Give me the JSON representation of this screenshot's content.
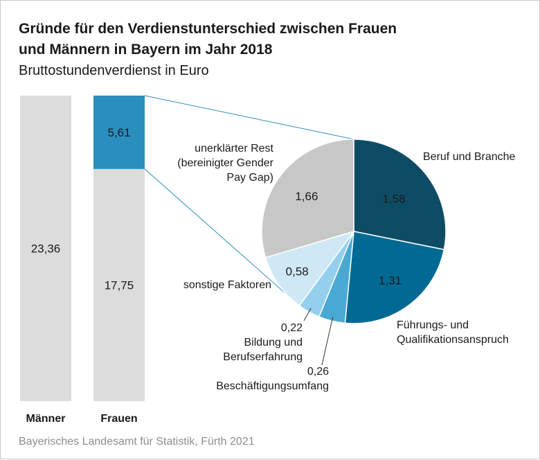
{
  "title_line1": "Gründe für den Verdienstunterschied zwischen Frauen",
  "title_line2": "und Männern in Bayern im Jahr 2018",
  "subtitle": "Bruttostundenverdienst in Euro",
  "source": "Bayerisches Landesamt für Statistik, Fürth 2021",
  "chart_data": [
    {
      "type": "bar",
      "stacked": true,
      "categories": [
        "Männer",
        "Frauen"
      ],
      "series": [
        {
          "values": [
            23.36,
            17.75
          ],
          "labels": [
            "23,36",
            "17,75"
          ],
          "color": "#dcdcdc"
        },
        {
          "values": [
            0,
            5.61
          ],
          "labels": [
            "",
            "5,61"
          ],
          "color": "#2a8fbf"
        }
      ]
    },
    {
      "type": "pie",
      "slices": [
        {
          "name_lines": [
            "Beruf und Branche"
          ],
          "value": 1.58,
          "label": "1,58",
          "color": "#0e4c66"
        },
        {
          "name_lines": [
            "Führungs- und",
            "Qualifikationsanspruch"
          ],
          "value": 1.31,
          "label": "1,31",
          "color": "#006a94"
        },
        {
          "name_lines": [
            "Beschäftigungsumfang"
          ],
          "value": 0.26,
          "label": "0,26",
          "color": "#4aa9d2"
        },
        {
          "name_lines": [
            "Bildung und",
            "Berufserfahrung"
          ],
          "value": 0.22,
          "label": "0,22",
          "color": "#94d0ed"
        },
        {
          "name_lines": [
            "sonstige Faktoren"
          ],
          "value": 0.58,
          "label": "0,58",
          "color": "#cfe8f5"
        },
        {
          "name_lines": [
            "unerklärter Rest",
            "(bereinigter Gender",
            "Pay Gap)"
          ],
          "value": 1.66,
          "label": "1,66",
          "color": "#c7c7c7"
        }
      ]
    }
  ]
}
